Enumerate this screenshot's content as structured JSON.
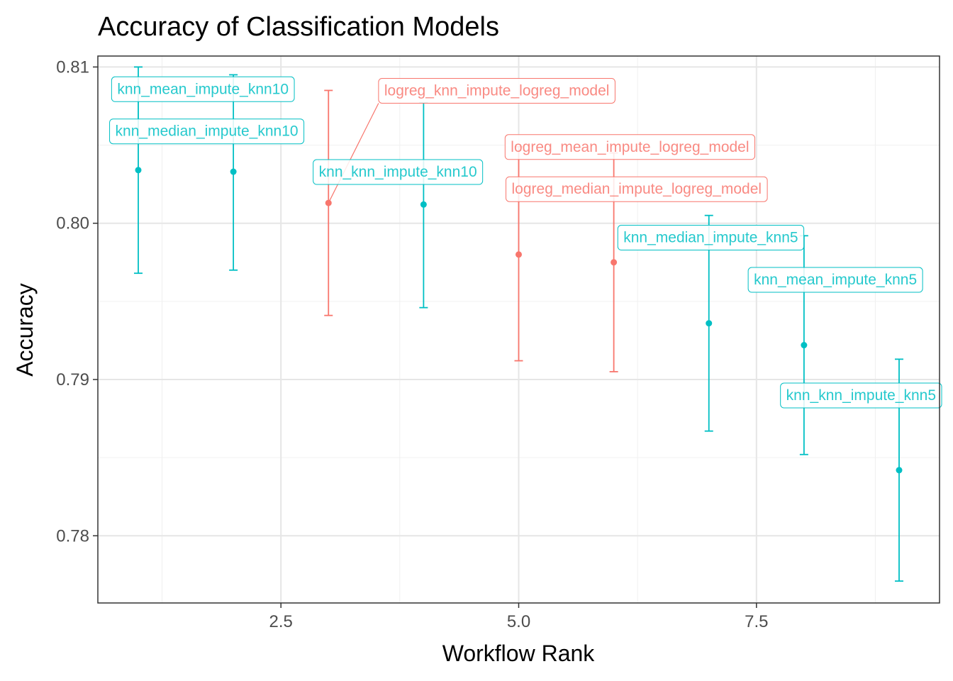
{
  "chart_data": {
    "type": "scatter",
    "title": "Accuracy of Classification Models",
    "xlabel": "Workflow Rank",
    "ylabel": "Accuracy",
    "xlim": [
      0.575,
      9.425
    ],
    "ylim": [
      0.7757,
      0.8107
    ],
    "x_ticks": [
      2.5,
      5.0,
      7.5
    ],
    "x_tick_labels": [
      "2.5",
      "5.0",
      "7.5"
    ],
    "y_ticks": [
      0.78,
      0.79,
      0.8,
      0.81
    ],
    "y_tick_labels": [
      "0.78",
      "0.79",
      "0.80",
      "0.81"
    ],
    "grid": true,
    "legend": "none",
    "colors": {
      "knn": "#00BFC4",
      "logreg": "#F8766D"
    },
    "points": [
      {
        "rank": 1,
        "mean": 0.8034,
        "lower": 0.7968,
        "upper": 0.81,
        "model": "knn",
        "label": "knn_mean_impute_knn10",
        "lx": 1.68,
        "ly": 0.8086
      },
      {
        "rank": 2,
        "mean": 0.8033,
        "lower": 0.797,
        "upper": 0.8095,
        "model": "knn",
        "label": "knn_median_impute_knn10",
        "lx": 1.72,
        "ly": 0.8059
      },
      {
        "rank": 3,
        "mean": 0.8013,
        "lower": 0.7941,
        "upper": 0.8085,
        "model": "logreg",
        "label": "logreg_knn_impute_logreg_model",
        "lx": 4.77,
        "ly": 0.8085
      },
      {
        "rank": 4,
        "mean": 0.8012,
        "lower": 0.7946,
        "upper": 0.8077,
        "model": "knn",
        "label": "knn_knn_impute_knn10",
        "lx": 3.73,
        "ly": 0.8033
      },
      {
        "rank": 5,
        "mean": 0.798,
        "lower": 0.7912,
        "upper": 0.8049,
        "model": "logreg",
        "label": "logreg_mean_impute_logreg_model",
        "lx": 6.17,
        "ly": 0.8049
      },
      {
        "rank": 6,
        "mean": 0.7975,
        "lower": 0.7905,
        "upper": 0.8045,
        "model": "logreg",
        "label": "logreg_median_impute_logreg_model",
        "lx": 6.24,
        "ly": 0.8022
      },
      {
        "rank": 7,
        "mean": 0.7936,
        "lower": 0.7867,
        "upper": 0.8005,
        "model": "knn",
        "label": "knn_median_impute_knn5",
        "lx": 7.02,
        "ly": 0.7991
      },
      {
        "rank": 8,
        "mean": 0.7922,
        "lower": 0.7852,
        "upper": 0.7992,
        "model": "knn",
        "label": "knn_mean_impute_knn5",
        "lx": 8.33,
        "ly": 0.7964
      },
      {
        "rank": 9,
        "mean": 0.7842,
        "lower": 0.7771,
        "upper": 0.7913,
        "model": "knn",
        "label": "knn_knn_impute_knn5",
        "lx": 8.6,
        "ly": 0.789
      }
    ]
  }
}
